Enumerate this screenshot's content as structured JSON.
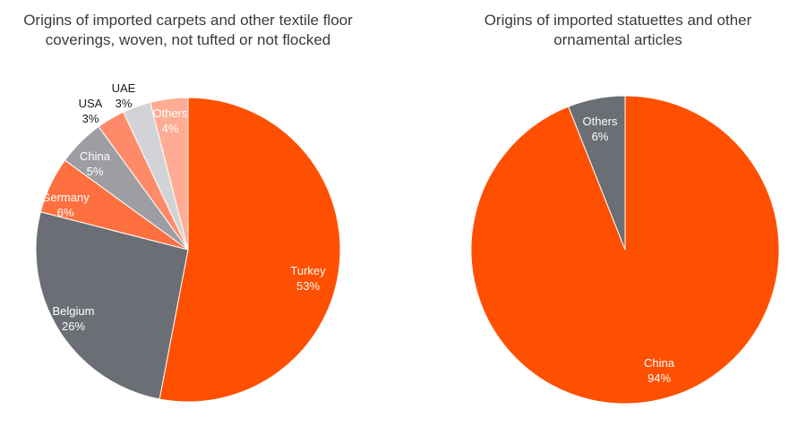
{
  "chart_data": [
    {
      "type": "pie",
      "title": "Origins of imported carpets and other textile floor coverings, woven, not tufted or not flocked",
      "slices": [
        {
          "label": "Turkey",
          "value": 53,
          "display": "53%",
          "color": "#ff4f00",
          "text_color": "#ffffff"
        },
        {
          "label": "Belgium",
          "value": 26,
          "display": "26%",
          "color": "#6b6e75",
          "text_color": "#ffffff"
        },
        {
          "label": "Germany",
          "value": 6,
          "display": "6%",
          "color": "#ff7040",
          "text_color": "#ffffff"
        },
        {
          "label": "China",
          "value": 5,
          "display": "5%",
          "color": "#9c9ea3",
          "text_color": "#ffffff"
        },
        {
          "label": "USA",
          "value": 3,
          "display": "3%",
          "color": "#ff8a6a",
          "text_color": "#1a1a1a"
        },
        {
          "label": "UAE",
          "value": 3,
          "display": "3%",
          "color": "#d2d3d6",
          "text_color": "#1a1a1a"
        },
        {
          "label": "Others",
          "value": 4,
          "display": "4%",
          "color": "#ffac94",
          "text_color": "#ffffff"
        }
      ]
    },
    {
      "type": "pie",
      "title": "Origins of imported statuettes and other ornamental articles",
      "slices": [
        {
          "label": "China",
          "value": 94,
          "display": "94%",
          "color": "#ff4f00",
          "text_color": "#ffffff"
        },
        {
          "label": "Others",
          "value": 6,
          "display": "6%",
          "color": "#6b6e75",
          "text_color": "#ffffff"
        }
      ]
    }
  ]
}
